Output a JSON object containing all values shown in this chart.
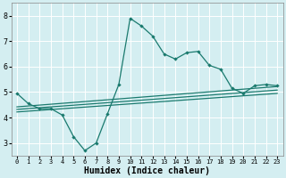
{
  "xlabel": "Humidex (Indice chaleur)",
  "bg_color": "#d4eef1",
  "line_color": "#1a7a6e",
  "grid_color": "#ffffff",
  "xlim": [
    -0.5,
    23.5
  ],
  "ylim": [
    2.5,
    8.5
  ],
  "yticks": [
    3,
    4,
    5,
    6,
    7,
    8
  ],
  "xticks": [
    0,
    1,
    2,
    3,
    4,
    5,
    6,
    7,
    8,
    9,
    10,
    11,
    12,
    13,
    14,
    15,
    16,
    17,
    18,
    19,
    20,
    21,
    22,
    23
  ],
  "line1_x": [
    0,
    1,
    2,
    3,
    4,
    5,
    6,
    7,
    8,
    9,
    10,
    11,
    12,
    13,
    14,
    15,
    16,
    17,
    18,
    19,
    20,
    21,
    22,
    23
  ],
  "line1_y": [
    4.95,
    4.55,
    4.35,
    4.35,
    4.1,
    3.25,
    2.7,
    3.0,
    4.15,
    5.3,
    7.9,
    7.6,
    7.2,
    6.5,
    6.3,
    6.55,
    6.6,
    6.05,
    5.9,
    5.15,
    4.95,
    5.25,
    5.3,
    5.25
  ],
  "line2_x": [
    0,
    23
  ],
  "line2_y": [
    4.42,
    5.22
  ],
  "line3_x": [
    0,
    23
  ],
  "line3_y": [
    4.32,
    5.08
  ],
  "line4_x": [
    0,
    23
  ],
  "line4_y": [
    4.22,
    4.95
  ]
}
